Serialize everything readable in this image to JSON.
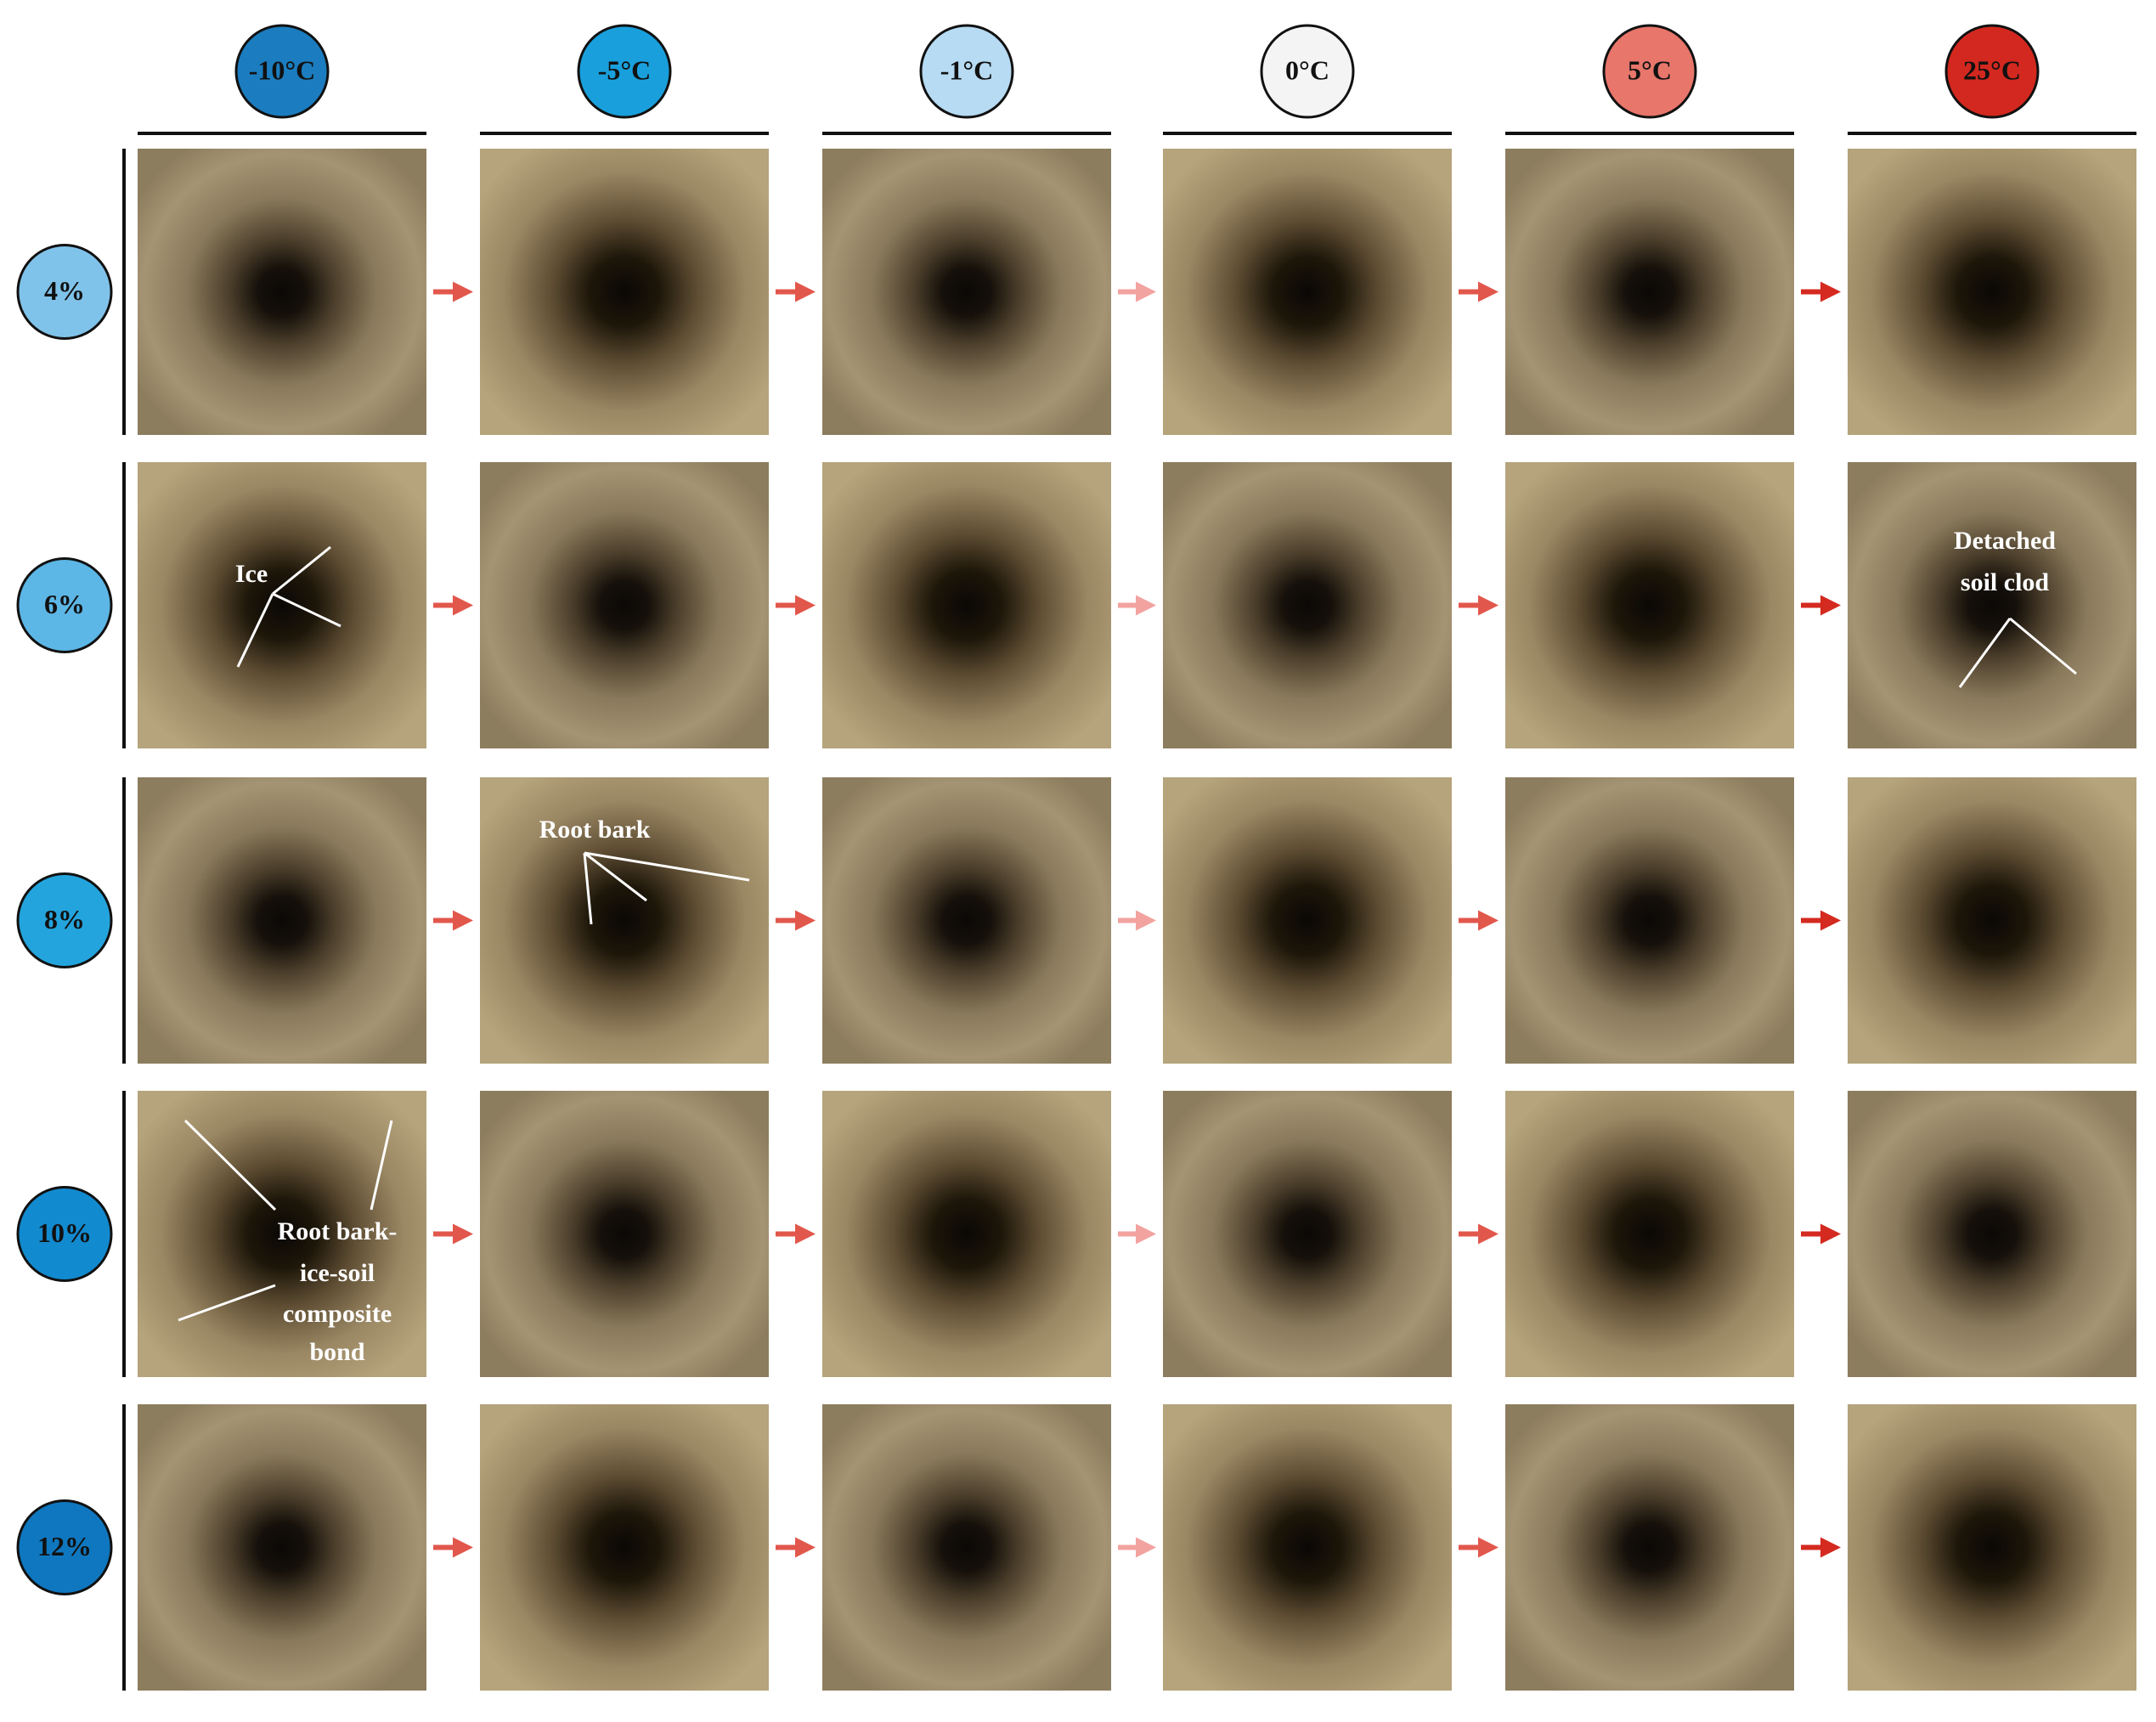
{
  "columns": [
    "-10°C",
    "-5°C",
    "-1°C",
    "0°C",
    "5°C",
    "25°C"
  ],
  "rows": [
    "4%",
    "6%",
    "8%",
    "10%",
    "12%"
  ],
  "annotations": {
    "ice": "Ice",
    "root_bark": "Root bark",
    "composite_bond": [
      "Root bark-",
      "ice-soil",
      "composite",
      "bond"
    ],
    "detached_soil_clod": [
      "Detached",
      "soil clod"
    ]
  }
}
